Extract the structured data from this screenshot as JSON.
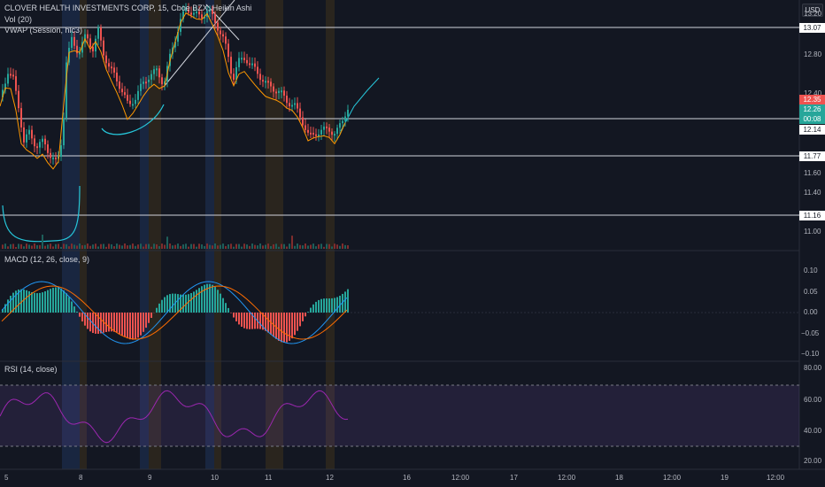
{
  "header": {
    "title": "CLOVER HEALTH INVESTMENTS CORP, 15, Cboe BZX, Heikin Ashi",
    "currency": "USD"
  },
  "indicators": {
    "vol": "Vol (20)",
    "vwap": "VWAP (Session, hlc3)",
    "macd": "MACD (12, 26, close, 9)",
    "rsi": "RSI (14, close)"
  },
  "price_axis": {
    "ticks": [
      "13.20",
      "12.80",
      "12.40",
      "11.60",
      "11.40",
      "11.00"
    ],
    "levels": [
      "13.07",
      "12.14",
      "11.77",
      "11.16"
    ],
    "tags": {
      "high": "12.35",
      "last": "12.26",
      "timer": "00:08"
    }
  },
  "macd_axis": {
    "ticks": [
      "0.10",
      "0.05",
      "0.00",
      "−0.05",
      "−0.10"
    ]
  },
  "rsi_axis": {
    "ticks": [
      "80.00",
      "60.00",
      "40.00",
      "20.00"
    ]
  },
  "time_axis": {
    "labels": [
      "5",
      "8",
      "9",
      "10",
      "11",
      "12",
      "16",
      "12:00",
      "17",
      "12:00",
      "18",
      "12:00",
      "19",
      "12:00"
    ]
  },
  "colors": {
    "up": "#26a69a",
    "down": "#ef5350",
    "vwap": "#ff9800",
    "macd_line": "#2196f3",
    "signal_line": "#ff6d00",
    "rsi": "#9c27b0"
  }
}
